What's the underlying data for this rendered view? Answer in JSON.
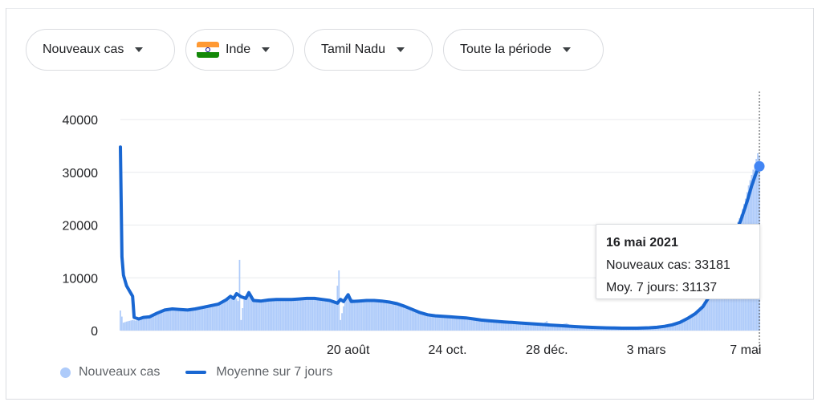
{
  "filters": {
    "metric": "Nouveaux cas",
    "country": "Inde",
    "region": "Tamil Nadu",
    "period": "Toute la période"
  },
  "colors": {
    "bars": "#aecbfa",
    "line": "#1967d2",
    "grid": "#e8eaed",
    "flag_saffron": "#ff9933",
    "flag_white": "#ffffff",
    "flag_green": "#138808"
  },
  "tooltip": {
    "date": "16 mai 2021",
    "new_cases_line": "Nouveaux cas: 33181",
    "avg_line": "Moy. 7 jours: 31137"
  },
  "chart_data": {
    "type": "bar",
    "ylim": [
      0,
      40000
    ],
    "y_ticks": [
      "0",
      "10000",
      "20000",
      "30000",
      "40000"
    ],
    "x_range": [
      "2020-03-24",
      "2021-05-16"
    ],
    "x_ticks": [
      {
        "label": "20 août",
        "date": "2020-08-20"
      },
      {
        "label": "24 oct.",
        "date": "2020-10-24"
      },
      {
        "label": "28 déc.",
        "date": "2020-12-28"
      },
      {
        "label": "3 mars",
        "date": "2021-03-03"
      },
      {
        "label": "7 mai",
        "date": "2021-05-07"
      }
    ],
    "series": [
      {
        "name": "Nouveaux cas",
        "kind": "bars",
        "points": [
          [
            "2020-03-24",
            3800
          ],
          [
            "2020-03-26",
            1500
          ],
          [
            "2020-03-28",
            1700
          ],
          [
            "2020-04-01",
            2000
          ],
          [
            "2020-04-03",
            1900
          ],
          [
            "2020-04-06",
            2200
          ],
          [
            "2020-04-10",
            2300
          ],
          [
            "2020-04-15",
            3000
          ],
          [
            "2020-04-20",
            3800
          ],
          [
            "2020-04-25",
            4100
          ],
          [
            "2020-04-30",
            4000
          ],
          [
            "2020-05-05",
            3800
          ],
          [
            "2020-05-10",
            4000
          ],
          [
            "2020-05-15",
            4300
          ],
          [
            "2020-05-20",
            4600
          ],
          [
            "2020-05-25",
            4900
          ],
          [
            "2020-05-30",
            5300
          ],
          [
            "2020-06-04",
            6000
          ],
          [
            "2020-06-07",
            6600
          ],
          [
            "2020-06-09",
            5600
          ],
          [
            "2020-06-10",
            13400
          ],
          [
            "2020-06-11",
            2000
          ],
          [
            "2020-06-13",
            6500
          ],
          [
            "2020-06-17",
            7000
          ],
          [
            "2020-06-20",
            5800
          ],
          [
            "2020-06-25",
            5700
          ],
          [
            "2020-06-30",
            5800
          ],
          [
            "2020-07-05",
            5900
          ],
          [
            "2020-07-10",
            5900
          ],
          [
            "2020-07-15",
            6000
          ],
          [
            "2020-07-20",
            6000
          ],
          [
            "2020-07-25",
            6100
          ],
          [
            "2020-07-30",
            6100
          ],
          [
            "2020-08-04",
            6000
          ],
          [
            "2020-08-09",
            5800
          ],
          [
            "2020-08-12",
            5600
          ],
          [
            "2020-08-14",
            11400
          ],
          [
            "2020-08-15",
            2000
          ],
          [
            "2020-08-18",
            5900
          ],
          [
            "2020-08-20",
            6400
          ],
          [
            "2020-08-25",
            5700
          ],
          [
            "2020-08-30",
            5800
          ],
          [
            "2020-09-05",
            5800
          ],
          [
            "2020-09-10",
            5700
          ],
          [
            "2020-09-15",
            5500
          ],
          [
            "2020-09-20",
            5300
          ],
          [
            "2020-09-25",
            4800
          ],
          [
            "2020-09-30",
            4300
          ],
          [
            "2020-10-05",
            3600
          ],
          [
            "2020-10-10",
            3100
          ],
          [
            "2020-10-15",
            2900
          ],
          [
            "2020-10-20",
            2800
          ],
          [
            "2020-10-25",
            2700
          ],
          [
            "2020-10-30",
            2600
          ],
          [
            "2020-11-05",
            2500
          ],
          [
            "2020-11-10",
            2300
          ],
          [
            "2020-11-15",
            2100
          ],
          [
            "2020-11-20",
            1900
          ],
          [
            "2020-11-25",
            1800
          ],
          [
            "2020-11-30",
            1700
          ],
          [
            "2020-12-05",
            1600
          ],
          [
            "2020-12-10",
            1500
          ],
          [
            "2020-12-15",
            1400
          ],
          [
            "2020-12-20",
            1300
          ],
          [
            "2020-12-25",
            1200
          ],
          [
            "2020-12-28",
            1800
          ],
          [
            "2020-12-30",
            1000
          ],
          [
            "2021-01-05",
            1100
          ],
          [
            "2021-01-10",
            1400
          ],
          [
            "2021-01-13",
            900
          ],
          [
            "2021-01-15",
            800
          ],
          [
            "2021-01-20",
            700
          ],
          [
            "2021-01-25",
            650
          ],
          [
            "2021-01-30",
            600
          ],
          [
            "2021-02-05",
            550
          ],
          [
            "2021-02-10",
            500
          ],
          [
            "2021-02-15",
            480
          ],
          [
            "2021-02-20",
            470
          ],
          [
            "2021-02-25",
            480
          ],
          [
            "2021-03-01",
            500
          ],
          [
            "2021-03-05",
            550
          ],
          [
            "2021-03-10",
            650
          ],
          [
            "2021-03-15",
            850
          ],
          [
            "2021-03-20",
            1200
          ],
          [
            "2021-03-25",
            1700
          ],
          [
            "2021-03-30",
            2500
          ],
          [
            "2021-04-04",
            3500
          ],
          [
            "2021-04-09",
            5000
          ],
          [
            "2021-04-14",
            7500
          ],
          [
            "2021-04-19",
            10500
          ],
          [
            "2021-04-24",
            15000
          ],
          [
            "2021-04-29",
            18500
          ],
          [
            "2021-05-04",
            22000
          ],
          [
            "2021-05-07",
            25000
          ],
          [
            "2021-05-09",
            27500
          ],
          [
            "2021-05-11",
            29500
          ],
          [
            "2021-05-13",
            31500
          ],
          [
            "2021-05-15",
            33600
          ],
          [
            "2021-05-16",
            33181
          ]
        ]
      },
      {
        "name": "Moyenne sur 7 jours",
        "kind": "line",
        "points": [
          [
            "2020-03-24",
            34800
          ],
          [
            "2020-03-25",
            14000
          ],
          [
            "2020-03-26",
            10500
          ],
          [
            "2020-03-28",
            8500
          ],
          [
            "2020-03-30",
            7500
          ],
          [
            "2020-04-01",
            6500
          ],
          [
            "2020-04-02",
            2500
          ],
          [
            "2020-04-05",
            2200
          ],
          [
            "2020-04-08",
            2500
          ],
          [
            "2020-04-12",
            2600
          ],
          [
            "2020-04-17",
            3300
          ],
          [
            "2020-04-22",
            3900
          ],
          [
            "2020-04-27",
            4100
          ],
          [
            "2020-05-02",
            4000
          ],
          [
            "2020-05-07",
            3900
          ],
          [
            "2020-05-12",
            4100
          ],
          [
            "2020-05-17",
            4400
          ],
          [
            "2020-05-22",
            4700
          ],
          [
            "2020-05-27",
            5000
          ],
          [
            "2020-06-01",
            5800
          ],
          [
            "2020-06-04",
            6500
          ],
          [
            "2020-06-06",
            6100
          ],
          [
            "2020-06-08",
            7000
          ],
          [
            "2020-06-11",
            6400
          ],
          [
            "2020-06-14",
            6100
          ],
          [
            "2020-06-16",
            7200
          ],
          [
            "2020-06-19",
            5700
          ],
          [
            "2020-06-24",
            5600
          ],
          [
            "2020-06-29",
            5800
          ],
          [
            "2020-07-04",
            5900
          ],
          [
            "2020-07-09",
            5900
          ],
          [
            "2020-07-14",
            5900
          ],
          [
            "2020-07-19",
            6000
          ],
          [
            "2020-07-24",
            6100
          ],
          [
            "2020-07-29",
            6100
          ],
          [
            "2020-08-03",
            5900
          ],
          [
            "2020-08-08",
            5700
          ],
          [
            "2020-08-13",
            5200
          ],
          [
            "2020-08-15",
            5900
          ],
          [
            "2020-08-17",
            5500
          ],
          [
            "2020-08-20",
            6800
          ],
          [
            "2020-08-22",
            5500
          ],
          [
            "2020-08-27",
            5600
          ],
          [
            "2020-09-01",
            5700
          ],
          [
            "2020-09-06",
            5700
          ],
          [
            "2020-09-11",
            5600
          ],
          [
            "2020-09-16",
            5400
          ],
          [
            "2020-09-21",
            5100
          ],
          [
            "2020-09-26",
            4600
          ],
          [
            "2020-10-01",
            4000
          ],
          [
            "2020-10-06",
            3400
          ],
          [
            "2020-10-11",
            3000
          ],
          [
            "2020-10-16",
            2800
          ],
          [
            "2020-10-21",
            2700
          ],
          [
            "2020-10-26",
            2600
          ],
          [
            "2020-10-31",
            2500
          ],
          [
            "2020-11-05",
            2400
          ],
          [
            "2020-11-10",
            2200
          ],
          [
            "2020-11-15",
            2000
          ],
          [
            "2020-11-20",
            1850
          ],
          [
            "2020-11-25",
            1750
          ],
          [
            "2020-11-30",
            1650
          ],
          [
            "2020-12-05",
            1550
          ],
          [
            "2020-12-10",
            1450
          ],
          [
            "2020-12-15",
            1350
          ],
          [
            "2020-12-20",
            1250
          ],
          [
            "2020-12-25",
            1150
          ],
          [
            "2020-12-30",
            1050
          ],
          [
            "2021-01-05",
            950
          ],
          [
            "2021-01-10",
            850
          ],
          [
            "2021-01-15",
            760
          ],
          [
            "2021-01-20",
            680
          ],
          [
            "2021-01-25",
            620
          ],
          [
            "2021-01-30",
            570
          ],
          [
            "2021-02-05",
            520
          ],
          [
            "2021-02-10",
            480
          ],
          [
            "2021-02-15",
            460
          ],
          [
            "2021-02-20",
            450
          ],
          [
            "2021-02-25",
            460
          ],
          [
            "2021-03-01",
            480
          ],
          [
            "2021-03-05",
            530
          ],
          [
            "2021-03-10",
            620
          ],
          [
            "2021-03-15",
            800
          ],
          [
            "2021-03-20",
            1100
          ],
          [
            "2021-03-25",
            1550
          ],
          [
            "2021-03-30",
            2300
          ],
          [
            "2021-04-04",
            3200
          ],
          [
            "2021-04-09",
            4500
          ],
          [
            "2021-04-14",
            6800
          ],
          [
            "2021-04-19",
            9800
          ],
          [
            "2021-04-24",
            13800
          ],
          [
            "2021-04-29",
            17500
          ],
          [
            "2021-05-04",
            21000
          ],
          [
            "2021-05-08",
            24500
          ],
          [
            "2021-05-11",
            27500
          ],
          [
            "2021-05-14",
            30000
          ],
          [
            "2021-05-16",
            31137
          ]
        ]
      }
    ],
    "legend": [
      "Nouveaux cas",
      "Moyenne sur 7 jours"
    ],
    "grid": true,
    "highlight_date": "2021-05-16"
  }
}
